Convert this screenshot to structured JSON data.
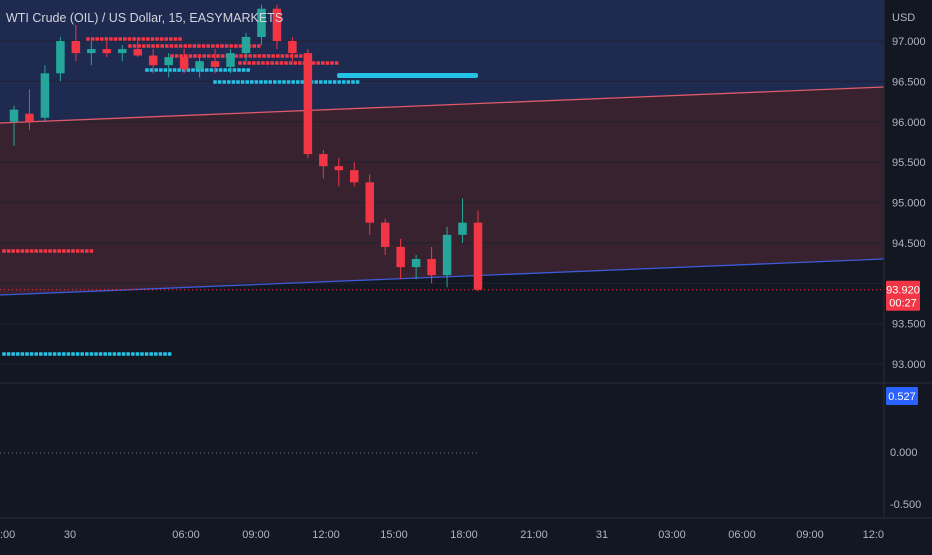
{
  "header": {
    "symbol_title": "WTI Crude (OIL) / US Dollar, 15, EASYMARKETS"
  },
  "price_axis": {
    "currency": "USD",
    "ticks": [
      "97.000",
      "96.500",
      "96.000",
      "95.500",
      "95.000",
      "94.500",
      "93.500",
      "93.000"
    ],
    "last_price": "93.920",
    "countdown": "00:27"
  },
  "indicator_axis": {
    "ticks": [
      "0.000",
      "-0.500"
    ],
    "current_value": "0.527"
  },
  "time_axis": {
    "ticks": [
      ":00",
      "30",
      "06:00",
      "09:00",
      "12:00",
      "15:00",
      "18:00",
      "21:00",
      "31",
      "03:00",
      "06:00",
      "09:00",
      "12:0"
    ]
  },
  "colors": {
    "background": "#131722",
    "bull": "#26a69a",
    "bear": "#f23645",
    "upper_zone": "#1f2d55",
    "lower_zone": "#3a2330",
    "upper_line": "#e15a6a",
    "lower_line": "#3d5bd9",
    "dot_red": "#f23645",
    "dot_cyan": "#22c3e6",
    "indicator_tag": "#2962ff"
  },
  "chart_data": {
    "type": "candlestick",
    "title": "WTI Crude (OIL) / US Dollar, 15, EASYMARKETS",
    "ylabel": "USD",
    "ylim": [
      92.78,
      97.5
    ],
    "last_price": 93.92,
    "candles": [
      {
        "o": 96.0,
        "h": 96.2,
        "l": 95.7,
        "c": 96.15
      },
      {
        "o": 96.1,
        "h": 96.4,
        "l": 95.9,
        "c": 96.0
      },
      {
        "o": 96.05,
        "h": 96.7,
        "l": 96.0,
        "c": 96.6
      },
      {
        "o": 96.6,
        "h": 97.05,
        "l": 96.5,
        "c": 97.0
      },
      {
        "o": 97.0,
        "h": 97.2,
        "l": 96.75,
        "c": 96.85
      },
      {
        "o": 96.85,
        "h": 97.0,
        "l": 96.7,
        "c": 96.9
      },
      {
        "o": 96.9,
        "h": 97.0,
        "l": 96.8,
        "c": 96.85
      },
      {
        "o": 96.85,
        "h": 96.95,
        "l": 96.75,
        "c": 96.9
      },
      {
        "o": 96.9,
        "h": 97.0,
        "l": 96.8,
        "c": 96.82
      },
      {
        "o": 96.82,
        "h": 96.9,
        "l": 96.6,
        "c": 96.7
      },
      {
        "o": 96.7,
        "h": 96.85,
        "l": 96.55,
        "c": 96.8
      },
      {
        "o": 96.8,
        "h": 96.9,
        "l": 96.6,
        "c": 96.65
      },
      {
        "o": 96.65,
        "h": 96.8,
        "l": 96.55,
        "c": 96.75
      },
      {
        "o": 96.75,
        "h": 96.9,
        "l": 96.6,
        "c": 96.68
      },
      {
        "o": 96.68,
        "h": 96.9,
        "l": 96.6,
        "c": 96.85
      },
      {
        "o": 96.85,
        "h": 97.1,
        "l": 96.75,
        "c": 97.05
      },
      {
        "o": 97.05,
        "h": 97.45,
        "l": 96.95,
        "c": 97.4
      },
      {
        "o": 97.4,
        "h": 97.45,
        "l": 96.9,
        "c": 97.0
      },
      {
        "o": 97.0,
        "h": 97.05,
        "l": 96.75,
        "c": 96.85
      },
      {
        "o": 96.85,
        "h": 96.9,
        "l": 95.55,
        "c": 95.6
      },
      {
        "o": 95.6,
        "h": 95.65,
        "l": 95.3,
        "c": 95.45
      },
      {
        "o": 95.45,
        "h": 95.55,
        "l": 95.2,
        "c": 95.4
      },
      {
        "o": 95.4,
        "h": 95.5,
        "l": 95.2,
        "c": 95.25
      },
      {
        "o": 95.25,
        "h": 95.35,
        "l": 94.6,
        "c": 94.75
      },
      {
        "o": 94.75,
        "h": 94.8,
        "l": 94.35,
        "c": 94.45
      },
      {
        "o": 94.45,
        "h": 94.55,
        "l": 94.05,
        "c": 94.2
      },
      {
        "o": 94.2,
        "h": 94.35,
        "l": 94.05,
        "c": 94.3
      },
      {
        "o": 94.3,
        "h": 94.45,
        "l": 94.0,
        "c": 94.1
      },
      {
        "o": 94.1,
        "h": 94.7,
        "l": 93.95,
        "c": 94.6
      },
      {
        "o": 94.6,
        "h": 95.05,
        "l": 94.5,
        "c": 94.75
      },
      {
        "o": 94.75,
        "h": 94.9,
        "l": 93.9,
        "c": 93.92
      }
    ]
  }
}
